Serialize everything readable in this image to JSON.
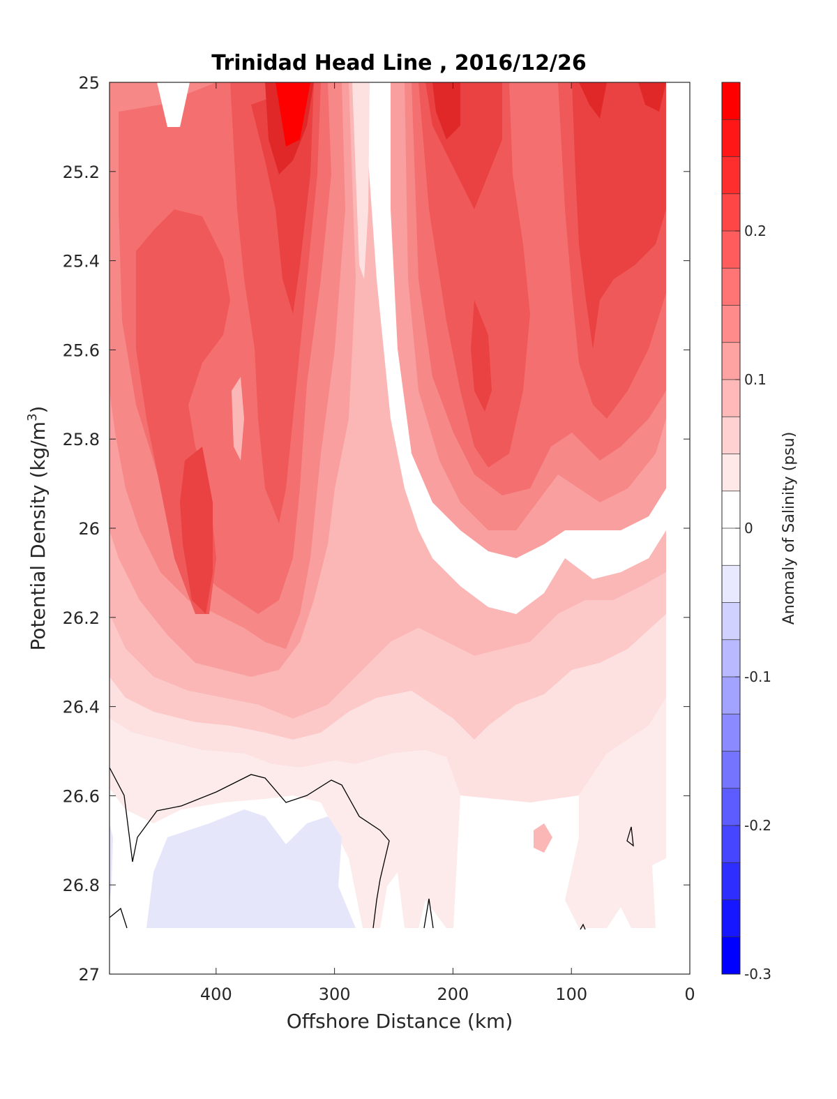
{
  "chart_data": {
    "type": "heatmap",
    "subtype": "filled-contour",
    "title": "Trinidad Head Line , 2016/12/26",
    "xlabel": "Offshore Distance (km)",
    "ylabel": "Potential Density (kg/m",
    "ylabel_sup": "3",
    "ylabel_close": ")",
    "xlim": [
      490,
      0
    ],
    "x_reversed": true,
    "ylim": [
      25,
      27
    ],
    "y_reversed": true,
    "x_ticks": [
      "400",
      "300",
      "200",
      "100",
      "0"
    ],
    "y_ticks": [
      "25",
      "25.2",
      "25.4",
      "25.6",
      "25.8",
      "26",
      "26.2",
      "26.4",
      "26.6",
      "26.8",
      "27"
    ],
    "colorbar": {
      "label": "Anomaly of Salinity (psu)",
      "range": [
        -0.3,
        0.3
      ],
      "level_step": 0.025,
      "tick_labels": [
        "0.2",
        "0.1",
        "0",
        "-0.1",
        "-0.2",
        "-0.3"
      ],
      "colormap": "blue-white-red",
      "low_color": "#0000ff",
      "mid_color": "#ffffff",
      "high_color": "#ff0000"
    },
    "data_extent": {
      "x_min": 20,
      "x_max": 490,
      "y_max": 26.9
    },
    "zero_contour": "black line",
    "notes_values": {
      "surface_max_psu": 0.25,
      "deep_min_psu": -0.025
    }
  }
}
